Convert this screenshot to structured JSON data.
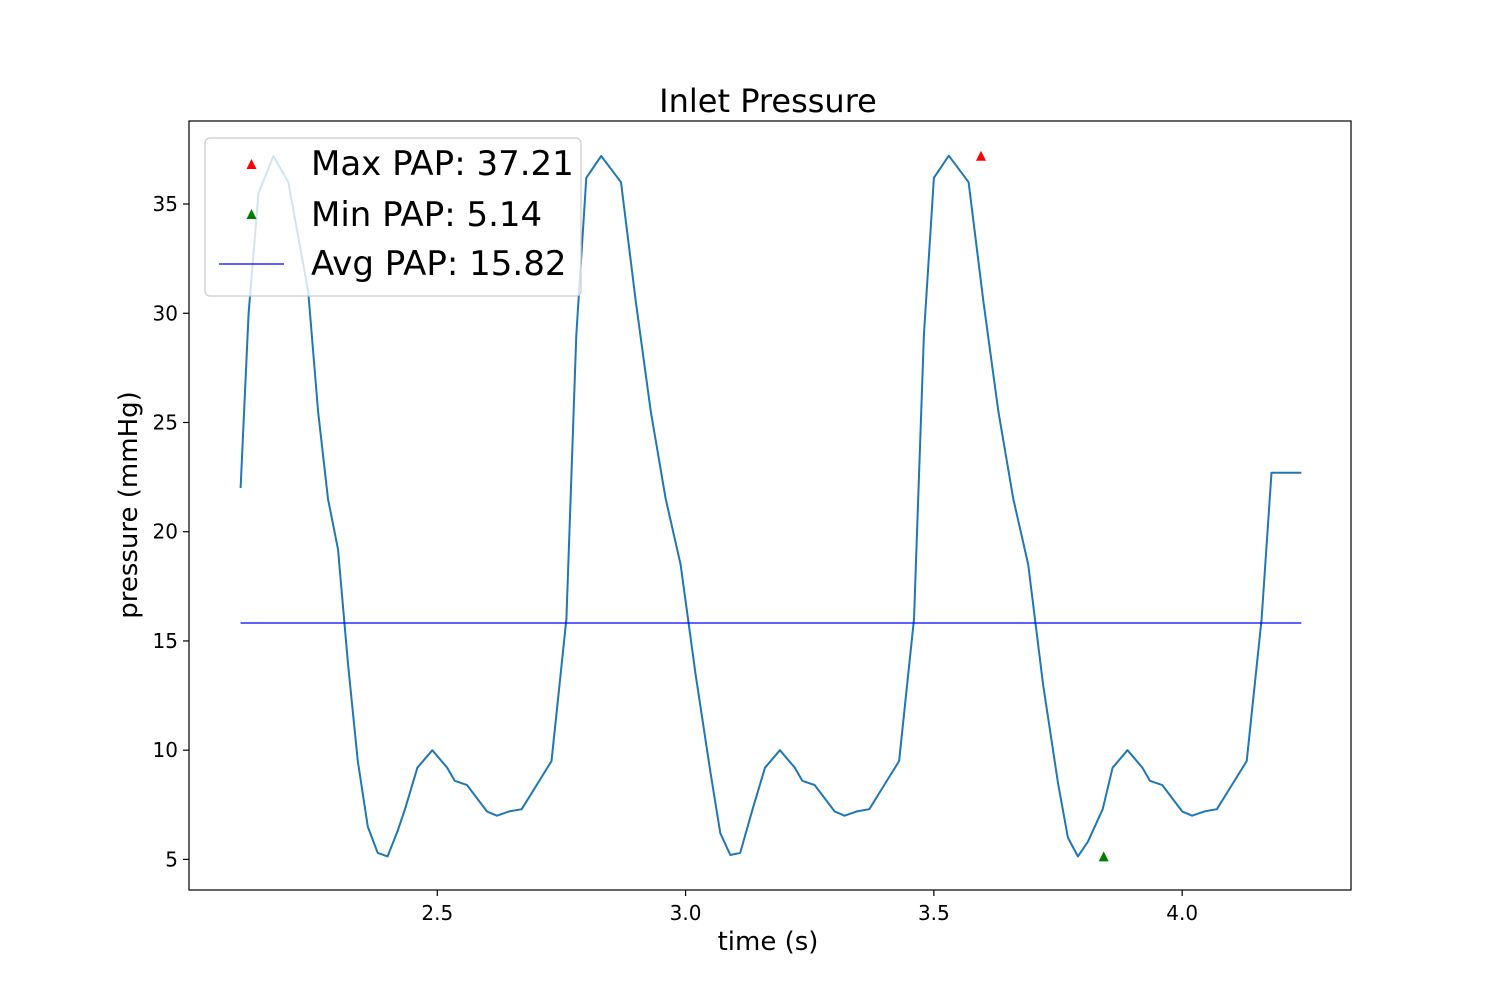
{
  "chart_data": {
    "type": "line",
    "title": "Inlet Pressure",
    "xlabel": "time (s)",
    "ylabel": "pressure (mmHg)",
    "xlim": [
      2.0,
      4.34
    ],
    "ylim": [
      3.6,
      38.8
    ],
    "xticks": [
      2.5,
      3.0,
      3.5,
      4.0
    ],
    "xtick_labels": [
      "2.5",
      "3.0",
      "3.5",
      "4.0"
    ],
    "yticks": [
      5,
      10,
      15,
      20,
      25,
      30,
      35
    ],
    "ytick_labels": [
      "5",
      "10",
      "15",
      "20",
      "25",
      "30",
      "35"
    ],
    "grid": false,
    "legend": {
      "placement": "upper-left",
      "entries": [
        {
          "label": "Max PAP: 37.21",
          "marker": "triangle",
          "color": "#ff0000"
        },
        {
          "label": "Min PAP: 5.14",
          "marker": "triangle",
          "color": "#008000"
        },
        {
          "label": "Avg PAP: 15.82",
          "marker": "line",
          "color": "#0000ff"
        }
      ]
    },
    "series": [
      {
        "color": "#1f77b4",
        "x": [
          2.104,
          2.12,
          2.14,
          2.17,
          2.2,
          2.24,
          2.26,
          2.28,
          2.3,
          2.32,
          2.34,
          2.36,
          2.38,
          2.4,
          2.42,
          2.435,
          2.46,
          2.49,
          2.52,
          2.535,
          2.56,
          2.6,
          2.62,
          2.645,
          2.67,
          2.7,
          2.73,
          2.76,
          2.78,
          2.8,
          2.83,
          2.87,
          2.9,
          2.93,
          2.96,
          2.99,
          3.02,
          3.05,
          3.07,
          3.09,
          3.11,
          3.135,
          3.16,
          3.19,
          3.22,
          3.235,
          3.26,
          3.3,
          3.32,
          3.345,
          3.37,
          3.4,
          3.43,
          3.46,
          3.48,
          3.5,
          3.53,
          3.57,
          3.6,
          3.63,
          3.66,
          3.69,
          3.72,
          3.75,
          3.77,
          3.79,
          3.81,
          3.84,
          3.86,
          3.89,
          3.92,
          3.935,
          3.96,
          4.0,
          4.02,
          4.045,
          4.07,
          4.1,
          4.13,
          4.16,
          4.18,
          4.2,
          4.22,
          4.24
        ],
        "y": [
          22.0,
          30.0,
          35.5,
          37.2,
          36.0,
          31.0,
          25.5,
          21.5,
          19.2,
          14.0,
          9.5,
          6.5,
          5.3,
          5.14,
          6.3,
          7.3,
          9.2,
          10.0,
          9.2,
          8.6,
          8.4,
          7.2,
          7.0,
          7.2,
          7.3,
          8.4,
          9.5,
          16.0,
          29.0,
          36.2,
          37.2,
          36.0,
          30.5,
          25.5,
          21.5,
          18.5,
          13.5,
          9.0,
          6.2,
          5.2,
          5.3,
          7.3,
          9.2,
          10.0,
          9.2,
          8.6,
          8.4,
          7.2,
          7.0,
          7.2,
          7.3,
          8.4,
          9.5,
          16.0,
          29.0,
          36.2,
          37.21,
          36.0,
          30.5,
          25.5,
          21.5,
          18.5,
          13.0,
          8.5,
          6.0,
          5.14,
          5.8,
          7.3,
          9.2,
          10.0,
          9.2,
          8.6,
          8.4,
          7.2,
          7.0,
          7.2,
          7.3,
          8.4,
          9.5,
          16.0,
          22.7,
          22.7,
          22.7,
          22.7
        ]
      },
      {
        "name": "Avg PAP: 15.82",
        "color": "#0000ff",
        "x": [
          2.104,
          4.24
        ],
        "y": [
          15.82,
          15.82
        ]
      }
    ],
    "annotations": [
      {
        "label": "Max PAP: 37.21",
        "x": 3.595,
        "y": 37.21,
        "color": "#ff0000",
        "marker": "triangle"
      },
      {
        "label": "Min PAP: 5.14",
        "x": 3.842,
        "y": 5.14,
        "color": "#008000",
        "marker": "triangle"
      }
    ]
  }
}
